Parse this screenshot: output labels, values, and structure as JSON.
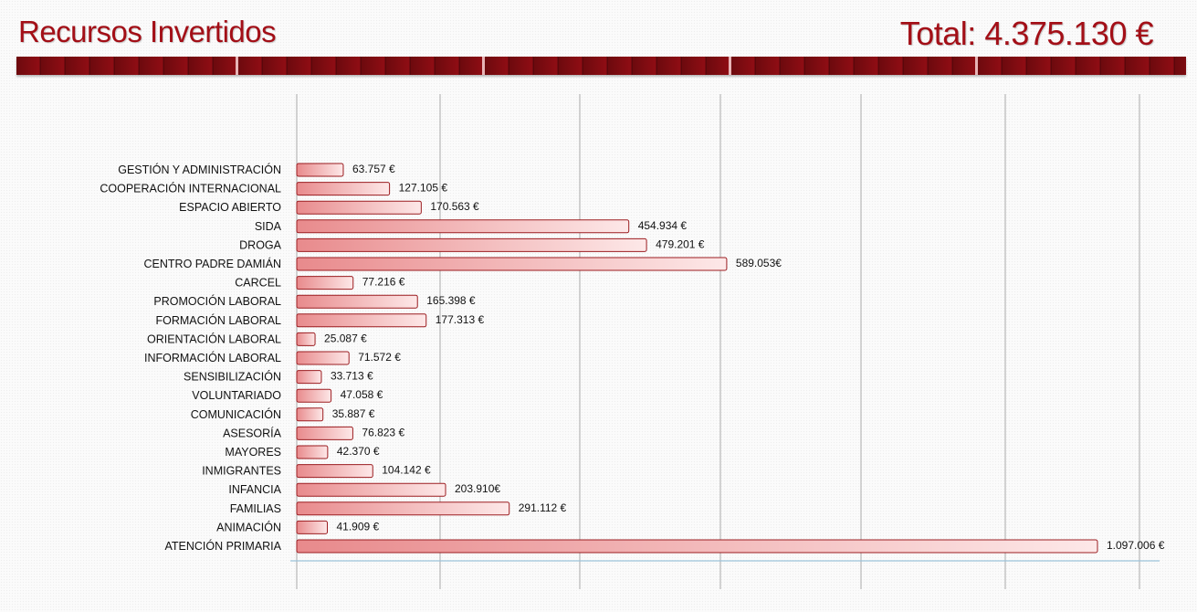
{
  "header": {
    "title": "Recursos Invertidos",
    "total": "Total: 4.375.130 €"
  },
  "colors": {
    "accent": "#a30f17",
    "band": "#7a0b10",
    "bar_dark": "#e88a8c",
    "bar_light": "#fde8e8",
    "bar_border": "#9b1c20"
  },
  "chart_data": {
    "type": "bar",
    "orientation": "horizontal",
    "categories": [
      "GESTIÓN Y ADMINISTRACIÓN",
      "COOPERACIÓN INTERNACIONAL",
      "ESPACIO ABIERTO",
      "SIDA",
      "DROGA",
      "CENTRO PADRE DAMIÁN",
      "CARCEL",
      "PROMOCIÓN LABORAL",
      "FORMACIÓN LABORAL",
      "ORIENTACIÓN LABORAL",
      "INFORMACIÓN LABORAL",
      "SENSIBILIZACIÓN",
      "VOLUNTARIADO",
      "COMUNICACIÓN",
      "ASESORÍA",
      "MAYORES",
      "INMIGRANTES",
      "INFANCIA",
      "FAMILIAS",
      "ANIMACIÓN",
      "ATENCIÓN PRIMARIA"
    ],
    "values": [
      63757,
      127105,
      170563,
      454934,
      479201,
      589053,
      77216,
      165398,
      177313,
      25087,
      71572,
      33713,
      47058,
      35887,
      76823,
      42370,
      104142,
      203910,
      291112,
      41909,
      1097006
    ],
    "value_labels": [
      "63.757 €",
      "127.105 €",
      "170.563 €",
      "454.934 €",
      "479.201 €",
      "589.053€",
      "77.216 €",
      "165.398 €",
      "177.313 €",
      "25.087 €",
      "71.572 €",
      "33.713 €",
      "47.058 €",
      "35.887 €",
      "76.823 €",
      "42.370 €",
      "104.142 €",
      "203.910€",
      "291.112 €",
      "41.909 €",
      "1.097.006 €"
    ],
    "title": "Recursos Invertidos",
    "xlabel": "",
    "ylabel": "",
    "grid": true,
    "legend": "none"
  }
}
